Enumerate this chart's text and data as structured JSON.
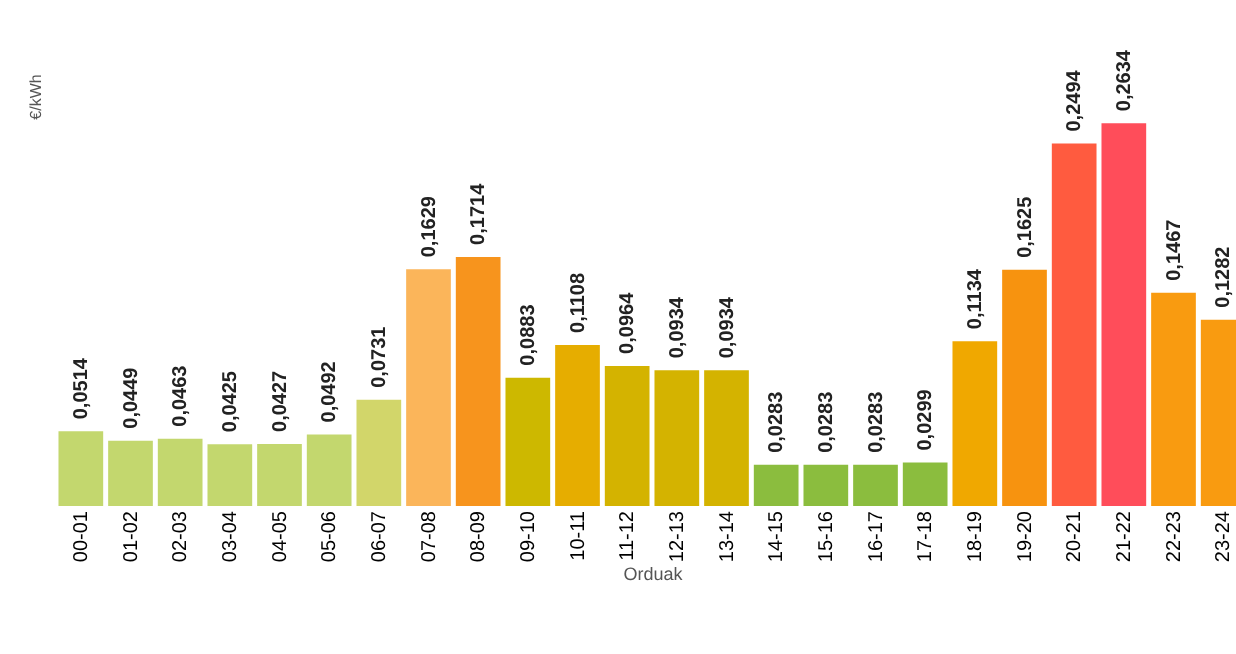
{
  "chart_data": {
    "type": "bar",
    "ylabel": "€/kWh",
    "xlabel": "Orduak",
    "categories": [
      "00-01",
      "01-02",
      "02-03",
      "03-04",
      "04-05",
      "05-06",
      "06-07",
      "07-08",
      "08-09",
      "09-10",
      "10-11",
      "11-12",
      "12-13",
      "13-14",
      "14-15",
      "15-16",
      "16-17",
      "17-18",
      "18-19",
      "19-20",
      "20-21",
      "21-22",
      "22-23",
      "23-24"
    ],
    "values": [
      0.0514,
      0.0449,
      0.0463,
      0.0425,
      0.0427,
      0.0492,
      0.0731,
      0.1629,
      0.1714,
      0.0883,
      0.1108,
      0.0964,
      0.0934,
      0.0934,
      0.0283,
      0.0283,
      0.0283,
      0.0299,
      0.1134,
      0.1625,
      0.2494,
      0.2634,
      0.1467,
      0.1282
    ],
    "value_labels": [
      "0,0514",
      "0,0449",
      "0,0463",
      "0,0425",
      "0,0427",
      "0,0492",
      "0,0731",
      "0,1629",
      "0,1714",
      "0,0883",
      "0,1108",
      "0,0964",
      "0,0934",
      "0,0934",
      "0,0283",
      "0,0283",
      "0,0283",
      "0,0299",
      "0,1134",
      "0,1625",
      "0,2494",
      "0,2634",
      "0,1467",
      "0,1282"
    ],
    "colors": [
      "#c3d76e",
      "#c3d76e",
      "#c3d76e",
      "#c3d76e",
      "#c3d76e",
      "#c3d76e",
      "#d2d66a",
      "#fbb55a",
      "#f7941d",
      "#cdb800",
      "#e6ad00",
      "#d4b300",
      "#d4b300",
      "#d4b300",
      "#8bbd3e",
      "#8bbd3e",
      "#8bbd3e",
      "#8bbd3e",
      "#f0a800",
      "#f7930f",
      "#ff5b3f",
      "#ff4d5a",
      "#f99b10",
      "#f99b10"
    ],
    "grid": false
  }
}
